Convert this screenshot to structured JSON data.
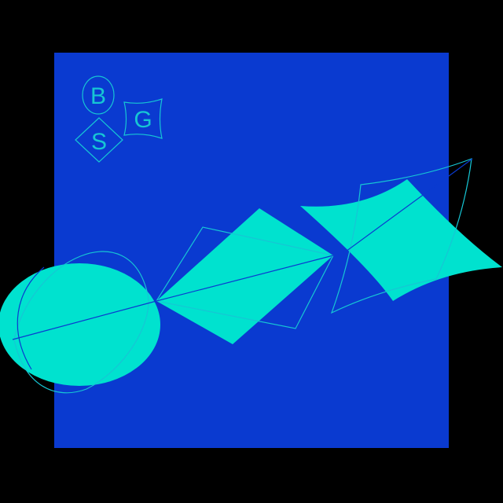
{
  "colors": {
    "background": "#000000",
    "panel": "#0a3ad0",
    "shape_fill": "#00e2cf",
    "line": "#16c6d4"
  },
  "logo": {
    "letter_top": "B",
    "letter_right": "G",
    "letter_bottom": "S"
  }
}
